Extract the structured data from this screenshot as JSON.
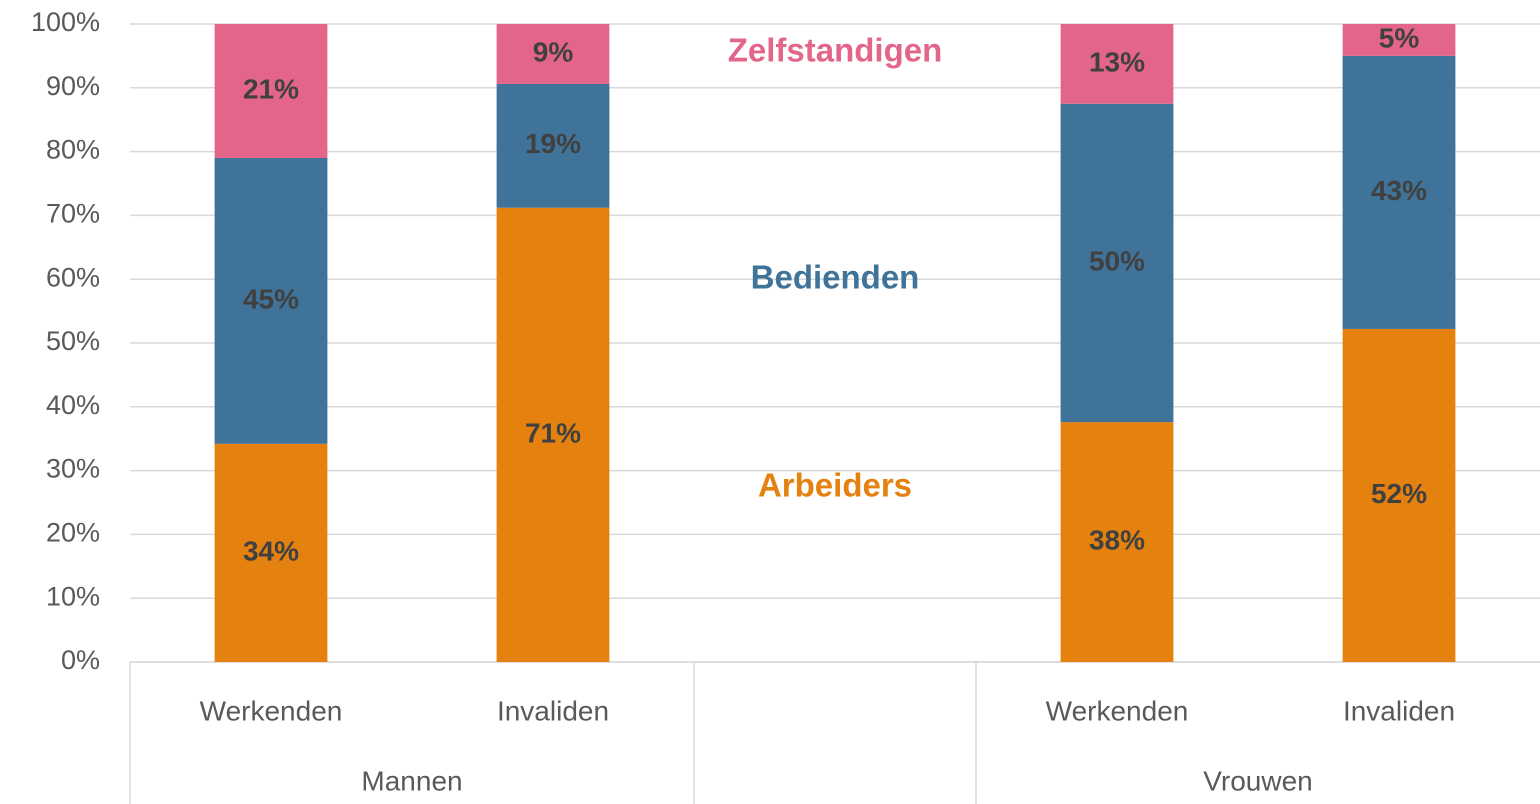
{
  "chart_data": {
    "type": "stacked_bar",
    "categories": [
      "Werkenden",
      "Invaliden",
      null,
      "Werkenden",
      "Invaliden"
    ],
    "groups": [
      "Mannen",
      null,
      "Vrouwen"
    ],
    "group_sizes": [
      2,
      1,
      2
    ],
    "series": [
      {
        "name": "Arbeiders",
        "color": "#E5810F",
        "values": [
          34.2,
          71.2,
          null,
          37.6,
          52.2
        ],
        "value_labels": [
          "34%",
          "71%",
          null,
          "38%",
          "52%"
        ]
      },
      {
        "name": "Bedienden",
        "color": "#3F7399",
        "values": [
          44.8,
          19.4,
          null,
          49.9,
          42.8
        ],
        "value_labels": [
          "45%",
          "19%",
          null,
          "50%",
          "43%"
        ]
      },
      {
        "name": "Zelfstandigen",
        "color": "#E3668A",
        "values": [
          21.0,
          9.4,
          null,
          12.5,
          5.0
        ],
        "value_labels": [
          "21%",
          "9%",
          null,
          "13%",
          "5%"
        ]
      }
    ],
    "ylim": [
      0,
      100
    ],
    "yticks": [
      {
        "value": 0,
        "label": "0%"
      },
      {
        "value": 10,
        "label": "10%"
      },
      {
        "value": 20,
        "label": "20%"
      },
      {
        "value": 30,
        "label": "30%"
      },
      {
        "value": 40,
        "label": "40%"
      },
      {
        "value": 50,
        "label": "50%"
      },
      {
        "value": 60,
        "label": "60%"
      },
      {
        "value": 70,
        "label": "70%"
      },
      {
        "value": 80,
        "label": "80%"
      },
      {
        "value": 90,
        "label": "90%"
      },
      {
        "value": 100,
        "label": "100%"
      }
    ],
    "grid": true
  }
}
